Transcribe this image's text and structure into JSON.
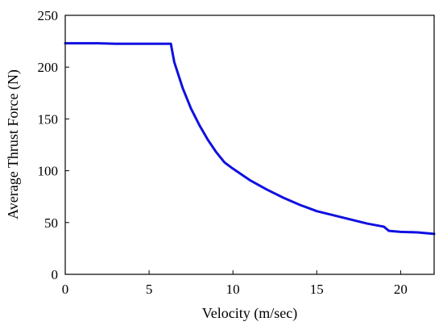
{
  "chart_data": {
    "type": "line",
    "title": "",
    "xlabel": "Velocity (m/sec)",
    "ylabel": "Average Thrust Force (N)",
    "xlim": [
      0,
      22
    ],
    "ylim": [
      0,
      250
    ],
    "x_ticks": [
      0,
      5,
      10,
      15,
      20
    ],
    "y_ticks": [
      0,
      50,
      100,
      150,
      200,
      250
    ],
    "grid": false,
    "legend": "none",
    "series": [
      {
        "color": "#1010e0",
        "x": [
          0,
          1,
          2,
          3,
          4,
          5,
          6,
          6.3,
          6.5,
          7,
          7.5,
          8,
          8.5,
          9,
          9.5,
          10,
          11,
          12,
          13,
          14,
          15,
          16,
          17,
          18,
          19,
          19.3,
          20,
          21,
          22
        ],
        "y": [
          223,
          223,
          223,
          222.5,
          222.5,
          222.5,
          222.5,
          222.5,
          205,
          180,
          160,
          144,
          130,
          118,
          108,
          102,
          91,
          82,
          74,
          67,
          61,
          57,
          53,
          49,
          46,
          42,
          41,
          40.5,
          39
        ]
      }
    ]
  }
}
